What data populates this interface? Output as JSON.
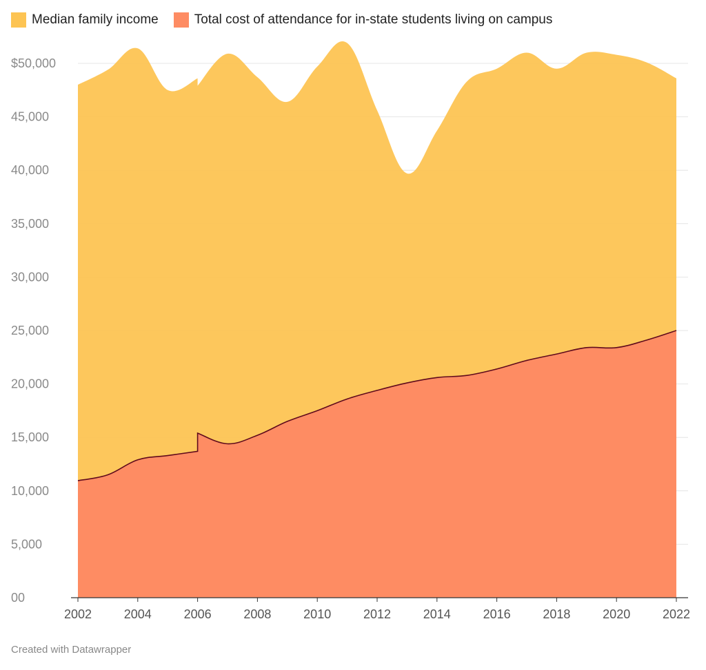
{
  "chart_data": {
    "type": "area",
    "title": "",
    "xlabel": "",
    "ylabel": "",
    "xlim": [
      2002,
      2022
    ],
    "ylim": [
      0,
      50000
    ],
    "grid": "horizontal",
    "legend_placement": "top-left",
    "yticks": [
      {
        "value": 0,
        "label": "00"
      },
      {
        "value": 5000,
        "label": "5,000"
      },
      {
        "value": 10000,
        "label": "10,000"
      },
      {
        "value": 15000,
        "label": "15,000"
      },
      {
        "value": 20000,
        "label": "20,000"
      },
      {
        "value": 25000,
        "label": "25,000"
      },
      {
        "value": 30000,
        "label": "30,000"
      },
      {
        "value": 35000,
        "label": "35,000"
      },
      {
        "value": 40000,
        "label": "40,000"
      },
      {
        "value": 45000,
        "label": "45,000"
      },
      {
        "value": 50000,
        "label": "$50,000"
      }
    ],
    "xticks": [
      "2002",
      "2004",
      "2006",
      "2008",
      "2010",
      "2012",
      "2014",
      "2016",
      "2018",
      "2020",
      "2022"
    ],
    "series": [
      {
        "name": "Median family income",
        "color": "#fdc453",
        "x": [
          2002,
          2003,
          2004,
          2005,
          2006,
          2006,
          2007,
          2008,
          2009,
          2010,
          2011,
          2012,
          2013,
          2014,
          2015,
          2016,
          2017,
          2018,
          2019,
          2020,
          2021,
          2022
        ],
        "values": [
          48000,
          49400,
          51400,
          47500,
          48600,
          47900,
          50900,
          48700,
          46400,
          49700,
          51900,
          45600,
          39700,
          43700,
          48300,
          49500,
          51000,
          49500,
          51000,
          50800,
          50100,
          48600
        ]
      },
      {
        "name": "Total cost of attendance for in-state students living on campus",
        "color": "#fe8c63",
        "x": [
          2002,
          2003,
          2004,
          2005,
          2006,
          2006,
          2007,
          2008,
          2009,
          2010,
          2011,
          2012,
          2013,
          2014,
          2015,
          2016,
          2017,
          2018,
          2019,
          2020,
          2021,
          2022
        ],
        "values": [
          10950,
          11500,
          12900,
          13300,
          13700,
          15400,
          14400,
          15200,
          16500,
          17500,
          18600,
          19400,
          20100,
          20600,
          20800,
          21400,
          22200,
          22800,
          23400,
          23400,
          24100,
          25000
        ]
      }
    ]
  },
  "footer": "Created with Datawrapper"
}
